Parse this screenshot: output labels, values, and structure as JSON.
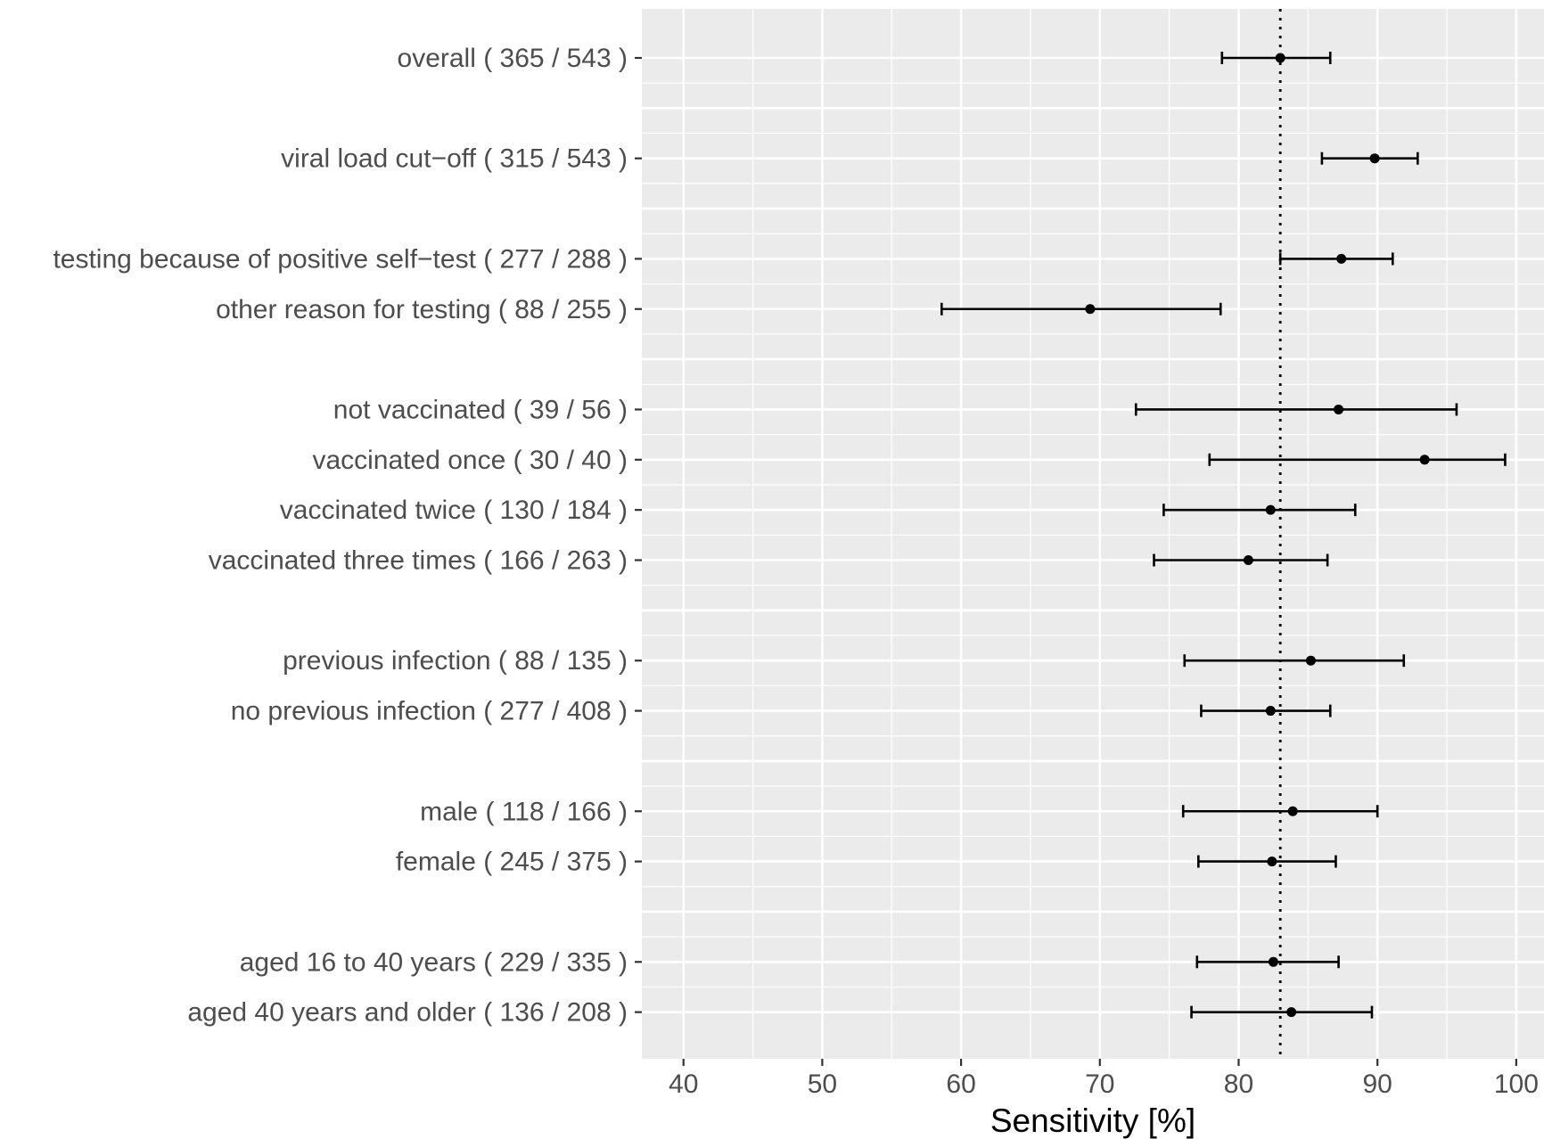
{
  "chart_data": {
    "type": "forest",
    "xlabel": "Sensitivity [%]",
    "xlim": [
      37,
      102
    ],
    "xticks": [
      40,
      50,
      60,
      70,
      80,
      90,
      100
    ],
    "reference_line": 83,
    "grid": true,
    "rows": [
      {
        "label": "overall ( 365 / 543 )",
        "estimate": 83.0,
        "lower": 78.8,
        "upper": 86.6
      },
      {
        "label": "",
        "estimate": null,
        "lower": null,
        "upper": null
      },
      {
        "label": "viral load cut−off ( 315 / 543 )",
        "estimate": 89.8,
        "lower": 86.0,
        "upper": 92.9
      },
      {
        "label": "",
        "estimate": null,
        "lower": null,
        "upper": null
      },
      {
        "label": "testing because of positive self−test ( 277 / 288 )",
        "estimate": 87.4,
        "lower": 83.0,
        "upper": 91.1
      },
      {
        "label": "other reason for testing ( 88 / 255 )",
        "estimate": 69.3,
        "lower": 58.6,
        "upper": 78.7
      },
      {
        "label": "",
        "estimate": null,
        "lower": null,
        "upper": null
      },
      {
        "label": "not vaccinated ( 39 / 56 )",
        "estimate": 87.2,
        "lower": 72.6,
        "upper": 95.7
      },
      {
        "label": "vaccinated once ( 30 / 40 )",
        "estimate": 93.4,
        "lower": 77.9,
        "upper": 99.2
      },
      {
        "label": "vaccinated twice ( 130 / 184 )",
        "estimate": 82.3,
        "lower": 74.6,
        "upper": 88.4
      },
      {
        "label": "vaccinated three times ( 166 / 263 )",
        "estimate": 80.7,
        "lower": 73.9,
        "upper": 86.4
      },
      {
        "label": "",
        "estimate": null,
        "lower": null,
        "upper": null
      },
      {
        "label": "previous infection ( 88 / 135 )",
        "estimate": 85.2,
        "lower": 76.1,
        "upper": 91.9
      },
      {
        "label": "no previous infection ( 277 / 408 )",
        "estimate": 82.3,
        "lower": 77.3,
        "upper": 86.6
      },
      {
        "label": "",
        "estimate": null,
        "lower": null,
        "upper": null
      },
      {
        "label": "male ( 118 / 166 )",
        "estimate": 83.9,
        "lower": 76.0,
        "upper": 90.0
      },
      {
        "label": "female ( 245 / 375 )",
        "estimate": 82.4,
        "lower": 77.1,
        "upper": 87.0
      },
      {
        "label": "",
        "estimate": null,
        "lower": null,
        "upper": null
      },
      {
        "label": "aged 16 to 40 years ( 229 / 335 )",
        "estimate": 82.5,
        "lower": 77.0,
        "upper": 87.2
      },
      {
        "label": "aged 40 years and older ( 136 / 208 )",
        "estimate": 83.8,
        "lower": 76.6,
        "upper": 89.6
      }
    ],
    "colors": {
      "panel": "#ebebeb",
      "grid": "#ffffff",
      "marks": "#000000",
      "text": "#4d4d4d"
    }
  }
}
